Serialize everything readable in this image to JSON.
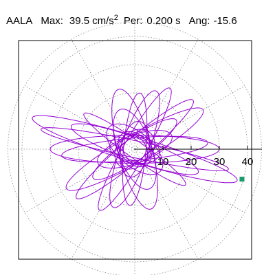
{
  "header": {
    "station": "AALA",
    "max_label": "Max:",
    "max_value": "39.5",
    "max_unit": "cm/s",
    "max_unit_exp": "2",
    "per_label": "Per:",
    "per_value": "0.200 s",
    "ang_label": "Ang:",
    "ang_value": "-15.6"
  },
  "chart_data": {
    "type": "scatter",
    "title": "",
    "xlabel": "",
    "ylabel": "",
    "r_max": 45,
    "r_ticks": [
      10,
      20,
      30,
      40
    ],
    "r_tick_labels": [
      "10",
      "20",
      "30",
      "40"
    ],
    "angular_grid_step_deg": 30,
    "grid": true,
    "trace_color": "#9400d3",
    "marker_color": "#1a9b6a",
    "peak_point": {
      "amplitude": 39.5,
      "angle_deg": -15.6
    },
    "loops": [
      {
        "semi_major": 26,
        "semi_minor": 4,
        "orientation_deg": 5
      },
      {
        "semi_major": 30,
        "semi_minor": 5,
        "orientation_deg": 0
      },
      {
        "semi_major": 38,
        "semi_minor": 4.5,
        "orientation_deg": -17
      },
      {
        "semi_major": 34,
        "semi_minor": 3,
        "orientation_deg": -12
      },
      {
        "semi_major": 28,
        "semi_minor": 5,
        "orientation_deg": 30
      },
      {
        "semi_major": 27,
        "semi_minor": 4,
        "orientation_deg": 40
      },
      {
        "semi_major": 25,
        "semi_minor": 4,
        "orientation_deg": 60
      },
      {
        "semi_major": 22,
        "semi_minor": 5,
        "orientation_deg": 70
      },
      {
        "semi_major": 22,
        "semi_minor": 6,
        "orientation_deg": -75
      },
      {
        "semi_major": 20,
        "semi_minor": 4,
        "orientation_deg": -95
      },
      {
        "semi_major": 24,
        "semi_minor": 4,
        "orientation_deg": 160
      },
      {
        "semi_major": 22,
        "semi_minor": 3,
        "orientation_deg": 145
      },
      {
        "semi_major": 18,
        "semi_minor": 4,
        "orientation_deg": -145
      },
      {
        "semi_major": 15,
        "semi_minor": 6,
        "orientation_deg": 110
      },
      {
        "semi_major": 14,
        "semi_minor": 5,
        "orientation_deg": 20
      },
      {
        "semi_major": 12,
        "semi_minor": 6,
        "orientation_deg": -40
      },
      {
        "semi_major": 10,
        "semi_minor": 5,
        "orientation_deg": 80
      },
      {
        "semi_major": 9,
        "semi_minor": 5,
        "orientation_deg": -10
      },
      {
        "semi_major": 8,
        "semi_minor": 6,
        "orientation_deg": 45
      },
      {
        "semi_major": 7,
        "semi_minor": 5,
        "orientation_deg": 130
      },
      {
        "semi_major": 6,
        "semi_minor": 4,
        "orientation_deg": -60
      },
      {
        "semi_major": 6,
        "semi_minor": 5,
        "orientation_deg": 10
      }
    ]
  }
}
